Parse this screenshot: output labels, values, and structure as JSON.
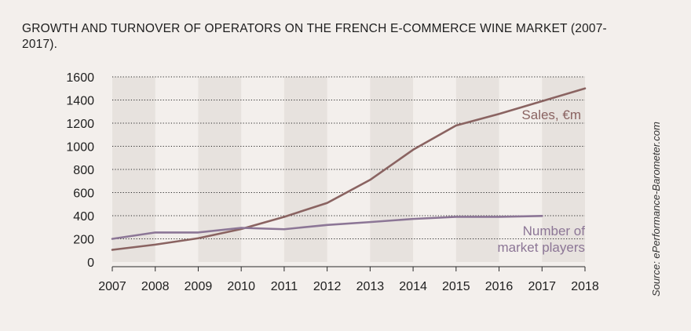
{
  "header": {
    "title": "GROWTH AND TURNOVER OF OPERATORS ON THE FRENCH E-COMMERCE WINE MARKET (2007-2017)."
  },
  "source": "Source: ePerformance-Barometer.com",
  "colors": {
    "background": "#f3efec",
    "band": "#e7e2de",
    "sales": "#8a6361",
    "players": "#8c7696",
    "grid": "#2a2a2a"
  },
  "chart_data": {
    "type": "line",
    "title": "GROWTH AND TURNOVER OF OPERATORS ON THE FRENCH E-COMMERCE WINE MARKET (2007-2017).",
    "x": [
      2007,
      2008,
      2009,
      2010,
      2011,
      2012,
      2013,
      2014,
      2015,
      2016,
      2017,
      2018
    ],
    "x_tick_labels": [
      "2007",
      "2008",
      "2009",
      "2010",
      "2011",
      "2012",
      "2013",
      "2014",
      "2015",
      "2016",
      "2017",
      "2018"
    ],
    "y_ticks": [
      0,
      200,
      400,
      600,
      800,
      1000,
      1200,
      1400,
      1600
    ],
    "y_tick_labels": [
      "0",
      "200",
      "400",
      "600",
      "800",
      "1000",
      "1200",
      "1400",
      "1600"
    ],
    "xlim": [
      2007,
      2018
    ],
    "ylim": [
      0,
      1600
    ],
    "grid": "horizontal dotted",
    "series": [
      {
        "name": "Sales, €m",
        "label_lines": [
          "Sales, €m"
        ],
        "color": "#8a6361",
        "x": [
          2007,
          2008,
          2009,
          2010,
          2011,
          2012,
          2013,
          2014,
          2015,
          2016,
          2017,
          2018
        ],
        "values": [
          105,
          150,
          205,
          285,
          390,
          510,
          710,
          970,
          1180,
          1280,
          1390,
          1500
        ]
      },
      {
        "name": "Number of market players",
        "label_lines": [
          "Number of",
          "market players"
        ],
        "color": "#8c7696",
        "x": [
          2007,
          2008,
          2009,
          2010,
          2011,
          2012,
          2013,
          2014,
          2015,
          2016,
          2017
        ],
        "values": [
          200,
          255,
          255,
          295,
          283,
          320,
          345,
          372,
          390,
          390,
          398
        ]
      }
    ]
  }
}
